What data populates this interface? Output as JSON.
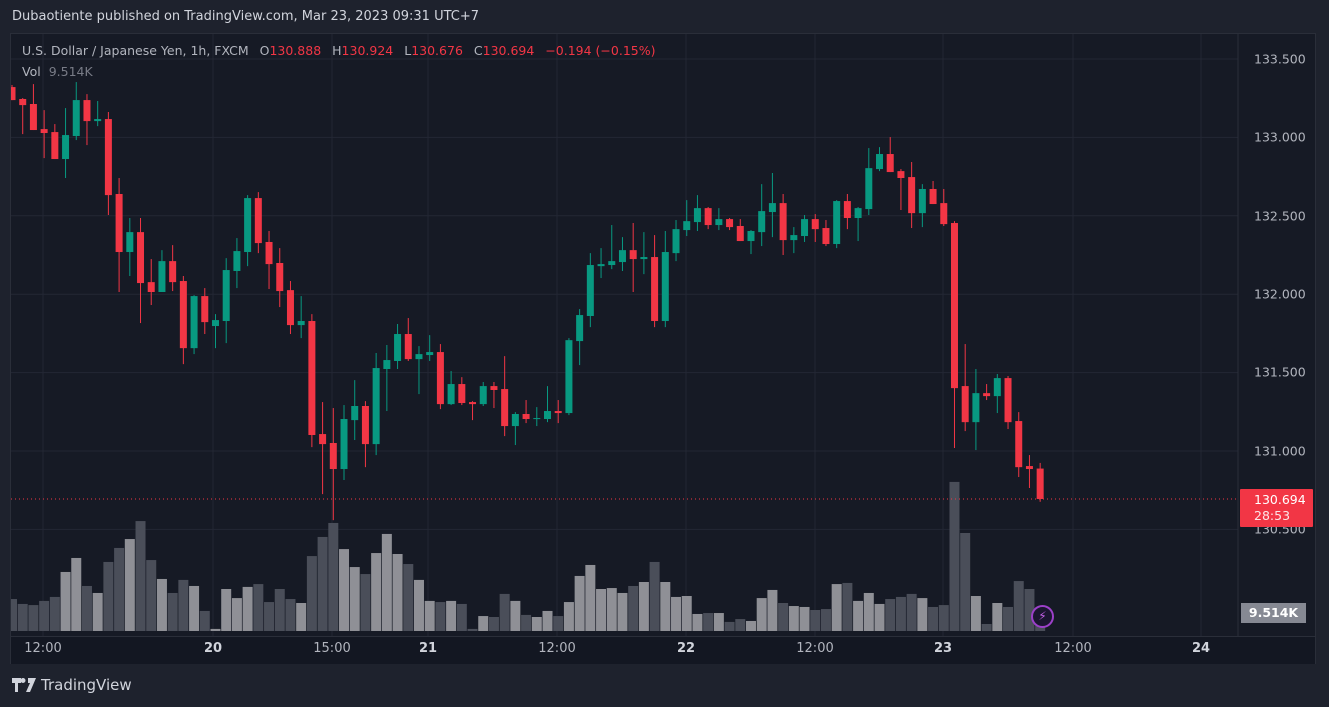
{
  "publisher_line": "Dubaotiente published on TradingView.com, Mar 23, 2023 09:31 UTC+7",
  "legend": {
    "symbol": "U.S. Dollar / Japanese Yen, 1h, FXCM",
    "o_label": "O",
    "o_value": "130.888",
    "h_label": "H",
    "h_value": "130.924",
    "l_label": "L",
    "l_value": "130.676",
    "c_label": "C",
    "c_value": "130.694",
    "change": "−0.194 (−0.15%)",
    "vol_label": "Vol",
    "vol_value": "9.514K"
  },
  "price_axis": [
    "133.500",
    "133.000",
    "132.500",
    "132.000",
    "131.500",
    "131.000",
    "130.500"
  ],
  "time_axis": [
    {
      "label": "12:00",
      "bold": false
    },
    {
      "label": "20",
      "bold": true
    },
    {
      "label": "15:00",
      "bold": false
    },
    {
      "label": "21",
      "bold": true
    },
    {
      "label": "12:00",
      "bold": false
    },
    {
      "label": "22",
      "bold": true
    },
    {
      "label": "12:00",
      "bold": false
    },
    {
      "label": "23",
      "bold": true
    },
    {
      "label": "12:00",
      "bold": false
    },
    {
      "label": "24",
      "bold": true
    }
  ],
  "last_price": {
    "value": "130.694",
    "countdown": "28:53"
  },
  "last_volume": "9.514K",
  "footer_logo": "TradingView",
  "icons": {
    "alert": "lightning-bolt-icon",
    "logo": "tradingview-logo-icon"
  },
  "colors": {
    "up": "#089981",
    "down": "#f23645",
    "vol_up": "#8f9096",
    "vol_down": "#4a4e59",
    "grid": "#232734"
  },
  "chart_data": {
    "type": "candlestick",
    "title": "U.S. Dollar / Japanese Yen, 1h, FXCM",
    "interval": "1h",
    "ylim": [
      130.3,
      133.6
    ],
    "grid": true,
    "ohlc": [
      [
        133.321,
        133.334,
        133.238,
        133.238
      ],
      [
        133.245,
        133.251,
        133.021,
        133.206
      ],
      [
        133.213,
        133.34,
        133.047,
        133.047
      ],
      [
        133.053,
        133.174,
        132.868,
        133.028
      ],
      [
        133.034,
        133.085,
        132.862,
        132.862
      ],
      [
        132.862,
        133.187,
        132.741,
        133.015
      ],
      [
        133.009,
        133.353,
        132.983,
        133.238
      ],
      [
        133.238,
        133.276,
        132.951,
        133.104
      ],
      [
        133.104,
        133.232,
        133.072,
        133.117
      ],
      [
        133.117,
        133.162,
        132.505,
        132.632
      ],
      [
        132.639,
        132.741,
        132.014,
        132.269
      ],
      [
        132.269,
        132.486,
        132.116,
        132.396
      ],
      [
        132.396,
        132.486,
        131.816,
        132.071
      ],
      [
        132.077,
        132.224,
        131.931,
        132.014
      ],
      [
        132.014,
        132.281,
        132.014,
        132.211
      ],
      [
        132.211,
        132.313,
        132.02,
        132.077
      ],
      [
        132.084,
        132.116,
        131.554,
        131.656
      ],
      [
        131.656,
        131.994,
        131.618,
        131.988
      ],
      [
        131.988,
        132.039,
        131.746,
        131.822
      ],
      [
        131.797,
        131.873,
        131.656,
        131.835
      ],
      [
        131.829,
        132.23,
        131.688,
        132.154
      ],
      [
        132.148,
        132.358,
        132.039,
        132.275
      ],
      [
        132.269,
        132.632,
        132.179,
        132.613
      ],
      [
        132.613,
        132.651,
        132.262,
        132.326
      ],
      [
        132.333,
        132.403,
        132.033,
        132.192
      ],
      [
        132.199,
        132.294,
        131.918,
        132.02
      ],
      [
        132.026,
        132.084,
        131.746,
        131.803
      ],
      [
        131.803,
        131.988,
        131.72,
        131.829
      ],
      [
        131.829,
        131.873,
        131.025,
        131.102
      ],
      [
        131.108,
        131.312,
        130.725,
        131.044
      ],
      [
        131.051,
        131.274,
        130.559,
        130.885
      ],
      [
        130.885,
        131.293,
        130.815,
        131.204
      ],
      [
        131.197,
        131.452,
        131.07,
        131.287
      ],
      [
        131.287,
        131.318,
        130.897,
        131.044
      ],
      [
        131.044,
        131.625,
        130.974,
        131.529
      ],
      [
        131.523,
        131.676,
        131.255,
        131.58
      ],
      [
        131.574,
        131.81,
        131.523,
        131.746
      ],
      [
        131.746,
        131.848,
        131.574,
        131.586
      ],
      [
        131.586,
        131.669,
        131.363,
        131.618
      ],
      [
        131.612,
        131.739,
        131.574,
        131.631
      ],
      [
        131.631,
        131.682,
        131.267,
        131.299
      ],
      [
        131.299,
        131.51,
        131.293,
        131.427
      ],
      [
        131.427,
        131.471,
        131.293,
        131.306
      ],
      [
        131.312,
        131.318,
        131.197,
        131.299
      ],
      [
        131.299,
        131.44,
        131.287,
        131.414
      ],
      [
        131.414,
        131.44,
        131.274,
        131.389
      ],
      [
        131.395,
        131.605,
        131.095,
        131.159
      ],
      [
        131.159,
        131.248,
        131.038,
        131.236
      ],
      [
        131.236,
        131.325,
        131.178,
        131.204
      ],
      [
        131.204,
        131.28,
        131.159,
        131.21
      ],
      [
        131.204,
        131.414,
        131.184,
        131.255
      ],
      [
        131.255,
        131.325,
        131.178,
        131.242
      ],
      [
        131.242,
        131.72,
        131.229,
        131.707
      ],
      [
        131.701,
        131.905,
        131.548,
        131.867
      ],
      [
        131.861,
        132.262,
        131.79,
        132.186
      ],
      [
        132.179,
        132.294,
        132.103,
        132.192
      ],
      [
        132.186,
        132.441,
        132.16,
        132.211
      ],
      [
        132.205,
        132.364,
        132.148,
        132.281
      ],
      [
        132.281,
        132.454,
        132.014,
        132.224
      ],
      [
        132.224,
        132.396,
        132.128,
        132.237
      ],
      [
        132.237,
        132.377,
        131.79,
        131.829
      ],
      [
        131.829,
        132.403,
        131.79,
        132.269
      ],
      [
        132.262,
        132.473,
        132.211,
        132.415
      ],
      [
        132.409,
        132.6,
        132.371,
        132.466
      ],
      [
        132.46,
        132.632,
        132.403,
        132.549
      ],
      [
        132.549,
        132.556,
        132.415,
        132.441
      ],
      [
        132.441,
        132.549,
        132.409,
        132.479
      ],
      [
        132.479,
        132.486,
        132.409,
        132.428
      ],
      [
        132.435,
        132.479,
        132.339,
        132.339
      ],
      [
        132.339,
        132.409,
        132.256,
        132.403
      ],
      [
        132.396,
        132.702,
        132.307,
        132.53
      ],
      [
        132.524,
        132.773,
        132.364,
        132.581
      ],
      [
        132.581,
        132.639,
        132.25,
        132.345
      ],
      [
        132.345,
        132.428,
        132.262,
        132.377
      ],
      [
        132.371,
        132.505,
        132.333,
        132.479
      ],
      [
        132.479,
        132.511,
        132.333,
        132.415
      ],
      [
        132.422,
        132.473,
        132.307,
        132.32
      ],
      [
        132.32,
        132.6,
        132.294,
        132.594
      ],
      [
        132.594,
        132.639,
        132.415,
        132.486
      ],
      [
        132.486,
        132.556,
        132.339,
        132.549
      ],
      [
        132.543,
        132.932,
        132.505,
        132.804
      ],
      [
        132.798,
        132.938,
        132.785,
        132.894
      ],
      [
        132.894,
        133.002,
        132.779,
        132.779
      ],
      [
        132.785,
        132.798,
        132.537,
        132.741
      ],
      [
        132.747,
        132.843,
        132.422,
        132.517
      ],
      [
        132.517,
        132.702,
        132.428,
        132.671
      ],
      [
        132.671,
        132.722,
        132.575,
        132.575
      ],
      [
        132.581,
        132.671,
        132.435,
        132.447
      ],
      [
        132.454,
        132.466,
        131.019,
        131.401
      ],
      [
        131.414,
        131.682,
        131.127,
        131.184
      ],
      [
        131.184,
        131.523,
        131.006,
        131.369
      ],
      [
        131.369,
        131.427,
        131.325,
        131.35
      ],
      [
        131.35,
        131.491,
        131.242,
        131.465
      ],
      [
        131.465,
        131.478,
        131.14,
        131.184
      ],
      [
        131.191,
        131.248,
        130.834,
        130.897
      ],
      [
        130.904,
        130.974,
        130.764,
        130.885
      ],
      [
        130.888,
        130.924,
        130.676,
        130.694
      ]
    ],
    "volume_k": [
      16.9,
      14.3,
      13.7,
      15.9,
      18.0,
      31.2,
      38.6,
      23.8,
      20.1,
      36.5,
      43.9,
      48.6,
      58.1,
      37.5,
      27.5,
      20.1,
      27.0,
      23.8,
      10.6,
      1.1,
      22.2,
      17.4,
      23.3,
      24.8,
      15.3,
      22.2,
      16.9,
      14.8,
      39.6,
      49.7,
      57.1,
      43.3,
      33.8,
      30.1,
      41.2,
      51.3,
      40.7,
      35.4,
      27.0,
      15.9,
      15.3,
      15.9,
      14.3,
      1.1,
      7.9,
      7.4,
      19.6,
      15.9,
      8.5,
      7.4,
      10.6,
      7.9,
      15.3,
      29.1,
      34.9,
      22.2,
      22.7,
      20.1,
      23.8,
      25.9,
      36.5,
      25.9,
      18.0,
      18.5,
      9.0,
      9.5,
      9.5,
      4.8,
      6.3,
      5.3,
      17.4,
      21.7,
      14.8,
      13.2,
      12.7,
      11.1,
      11.6,
      24.8,
      25.4,
      15.9,
      20.1,
      14.3,
      16.9,
      18.0,
      19.6,
      17.4,
      12.7,
      13.7,
      78.8,
      51.8,
      18.5,
      3.7,
      14.8,
      12.7,
      26.4,
      22.2,
      9.514
    ],
    "last_close": 130.694
  }
}
